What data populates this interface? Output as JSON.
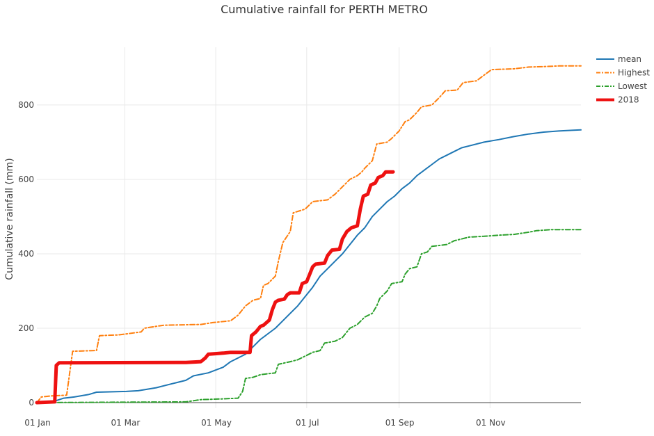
{
  "chart_data": {
    "type": "line",
    "title": "Cumulative rainfall for PERTH METRO",
    "ylabel": "Cumulative rainfall (mm)",
    "xlabel": "",
    "x_tick_labels": [
      "01 Jan",
      "01 Mar",
      "01 May",
      "01 Jul",
      "01 Sep",
      "01 Nov"
    ],
    "x_tick_days": [
      0,
      59,
      120,
      181,
      243,
      304
    ],
    "y_ticks": [
      0,
      200,
      400,
      600,
      800
    ],
    "xlim_days": [
      0,
      365
    ],
    "ylim": [
      -15,
      955
    ],
    "grid": true,
    "legend_position": "top-right",
    "series": [
      {
        "name": "mean",
        "color": "#1f77b4",
        "dash": "solid",
        "width": 2,
        "points": [
          [
            0,
            0
          ],
          [
            5,
            2
          ],
          [
            12,
            4
          ],
          [
            18,
            12
          ],
          [
            25,
            15
          ],
          [
            35,
            22
          ],
          [
            40,
            28
          ],
          [
            60,
            30
          ],
          [
            68,
            32
          ],
          [
            80,
            40
          ],
          [
            90,
            50
          ],
          [
            100,
            60
          ],
          [
            105,
            72
          ],
          [
            115,
            80
          ],
          [
            125,
            95
          ],
          [
            130,
            110
          ],
          [
            140,
            130
          ],
          [
            145,
            150
          ],
          [
            150,
            170
          ],
          [
            155,
            185
          ],
          [
            160,
            200
          ],
          [
            165,
            220
          ],
          [
            170,
            240
          ],
          [
            175,
            260
          ],
          [
            180,
            285
          ],
          [
            185,
            310
          ],
          [
            190,
            340
          ],
          [
            195,
            360
          ],
          [
            200,
            380
          ],
          [
            205,
            400
          ],
          [
            210,
            425
          ],
          [
            215,
            450
          ],
          [
            220,
            470
          ],
          [
            225,
            500
          ],
          [
            230,
            520
          ],
          [
            235,
            540
          ],
          [
            240,
            555
          ],
          [
            245,
            575
          ],
          [
            250,
            590
          ],
          [
            255,
            610
          ],
          [
            260,
            625
          ],
          [
            265,
            640
          ],
          [
            270,
            655
          ],
          [
            275,
            665
          ],
          [
            280,
            675
          ],
          [
            285,
            685
          ],
          [
            290,
            690
          ],
          [
            300,
            700
          ],
          [
            310,
            707
          ],
          [
            320,
            715
          ],
          [
            330,
            722
          ],
          [
            340,
            727
          ],
          [
            350,
            730
          ],
          [
            360,
            732
          ],
          [
            365,
            733
          ]
        ]
      },
      {
        "name": "Highest",
        "color": "#ff7f0e",
        "dash": "dashdot",
        "width": 2,
        "points": [
          [
            0,
            0
          ],
          [
            3,
            15
          ],
          [
            10,
            18
          ],
          [
            20,
            20
          ],
          [
            24,
            138
          ],
          [
            40,
            140
          ],
          [
            42,
            180
          ],
          [
            55,
            182
          ],
          [
            70,
            190
          ],
          [
            72,
            200
          ],
          [
            80,
            205
          ],
          [
            85,
            208
          ],
          [
            110,
            210
          ],
          [
            118,
            215
          ],
          [
            130,
            220
          ],
          [
            135,
            235
          ],
          [
            140,
            260
          ],
          [
            145,
            275
          ],
          [
            150,
            280
          ],
          [
            152,
            315
          ],
          [
            155,
            320
          ],
          [
            160,
            340
          ],
          [
            162,
            380
          ],
          [
            165,
            430
          ],
          [
            170,
            460
          ],
          [
            172,
            510
          ],
          [
            180,
            520
          ],
          [
            185,
            540
          ],
          [
            195,
            545
          ],
          [
            200,
            560
          ],
          [
            205,
            580
          ],
          [
            210,
            600
          ],
          [
            215,
            610
          ],
          [
            218,
            620
          ],
          [
            220,
            630
          ],
          [
            225,
            650
          ],
          [
            228,
            695
          ],
          [
            235,
            700
          ],
          [
            238,
            710
          ],
          [
            243,
            730
          ],
          [
            247,
            755
          ],
          [
            250,
            760
          ],
          [
            255,
            780
          ],
          [
            258,
            795
          ],
          [
            265,
            800
          ],
          [
            270,
            820
          ],
          [
            274,
            838
          ],
          [
            282,
            840
          ],
          [
            286,
            860
          ],
          [
            295,
            865
          ],
          [
            300,
            880
          ],
          [
            305,
            895
          ],
          [
            320,
            897
          ],
          [
            330,
            902
          ],
          [
            340,
            903
          ],
          [
            350,
            905
          ],
          [
            365,
            905
          ]
        ]
      },
      {
        "name": "Lowest",
        "color": "#2ca02c",
        "dash": "dashdot",
        "width": 2,
        "points": [
          [
            0,
            0
          ],
          [
            100,
            2
          ],
          [
            110,
            8
          ],
          [
            125,
            10
          ],
          [
            135,
            12
          ],
          [
            138,
            30
          ],
          [
            140,
            65
          ],
          [
            145,
            68
          ],
          [
            150,
            75
          ],
          [
            160,
            80
          ],
          [
            162,
            103
          ],
          [
            170,
            110
          ],
          [
            175,
            115
          ],
          [
            180,
            125
          ],
          [
            185,
            135
          ],
          [
            190,
            140
          ],
          [
            193,
            160
          ],
          [
            200,
            165
          ],
          [
            205,
            175
          ],
          [
            210,
            200
          ],
          [
            215,
            210
          ],
          [
            220,
            230
          ],
          [
            225,
            240
          ],
          [
            228,
            260
          ],
          [
            230,
            280
          ],
          [
            235,
            300
          ],
          [
            238,
            320
          ],
          [
            245,
            325
          ],
          [
            247,
            345
          ],
          [
            250,
            360
          ],
          [
            255,
            365
          ],
          [
            258,
            400
          ],
          [
            262,
            405
          ],
          [
            265,
            420
          ],
          [
            275,
            425
          ],
          [
            280,
            435
          ],
          [
            285,
            440
          ],
          [
            290,
            445
          ],
          [
            300,
            447
          ],
          [
            310,
            450
          ],
          [
            320,
            452
          ],
          [
            330,
            458
          ],
          [
            335,
            462
          ],
          [
            345,
            465
          ],
          [
            365,
            465
          ]
        ]
      },
      {
        "name": "2018",
        "color": "#ee1111",
        "dash": "solid",
        "width": 5,
        "points": [
          [
            0,
            0
          ],
          [
            12,
            2
          ],
          [
            13,
            100
          ],
          [
            15,
            107
          ],
          [
            100,
            108
          ],
          [
            110,
            110
          ],
          [
            113,
            120
          ],
          [
            115,
            130
          ],
          [
            125,
            133
          ],
          [
            130,
            135
          ],
          [
            143,
            135
          ],
          [
            144,
            180
          ],
          [
            147,
            190
          ],
          [
            150,
            205
          ],
          [
            152,
            208
          ],
          [
            156,
            222
          ],
          [
            158,
            250
          ],
          [
            160,
            270
          ],
          [
            162,
            275
          ],
          [
            166,
            278
          ],
          [
            168,
            290
          ],
          [
            170,
            295
          ],
          [
            176,
            295
          ],
          [
            178,
            320
          ],
          [
            181,
            325
          ],
          [
            183,
            345
          ],
          [
            185,
            365
          ],
          [
            187,
            372
          ],
          [
            193,
            375
          ],
          [
            195,
            395
          ],
          [
            198,
            410
          ],
          [
            203,
            412
          ],
          [
            205,
            440
          ],
          [
            208,
            460
          ],
          [
            211,
            470
          ],
          [
            215,
            475
          ],
          [
            217,
            520
          ],
          [
            219,
            555
          ],
          [
            222,
            560
          ],
          [
            224,
            585
          ],
          [
            227,
            590
          ],
          [
            229,
            605
          ],
          [
            232,
            610
          ],
          [
            234,
            620
          ],
          [
            239,
            620
          ]
        ]
      }
    ]
  }
}
